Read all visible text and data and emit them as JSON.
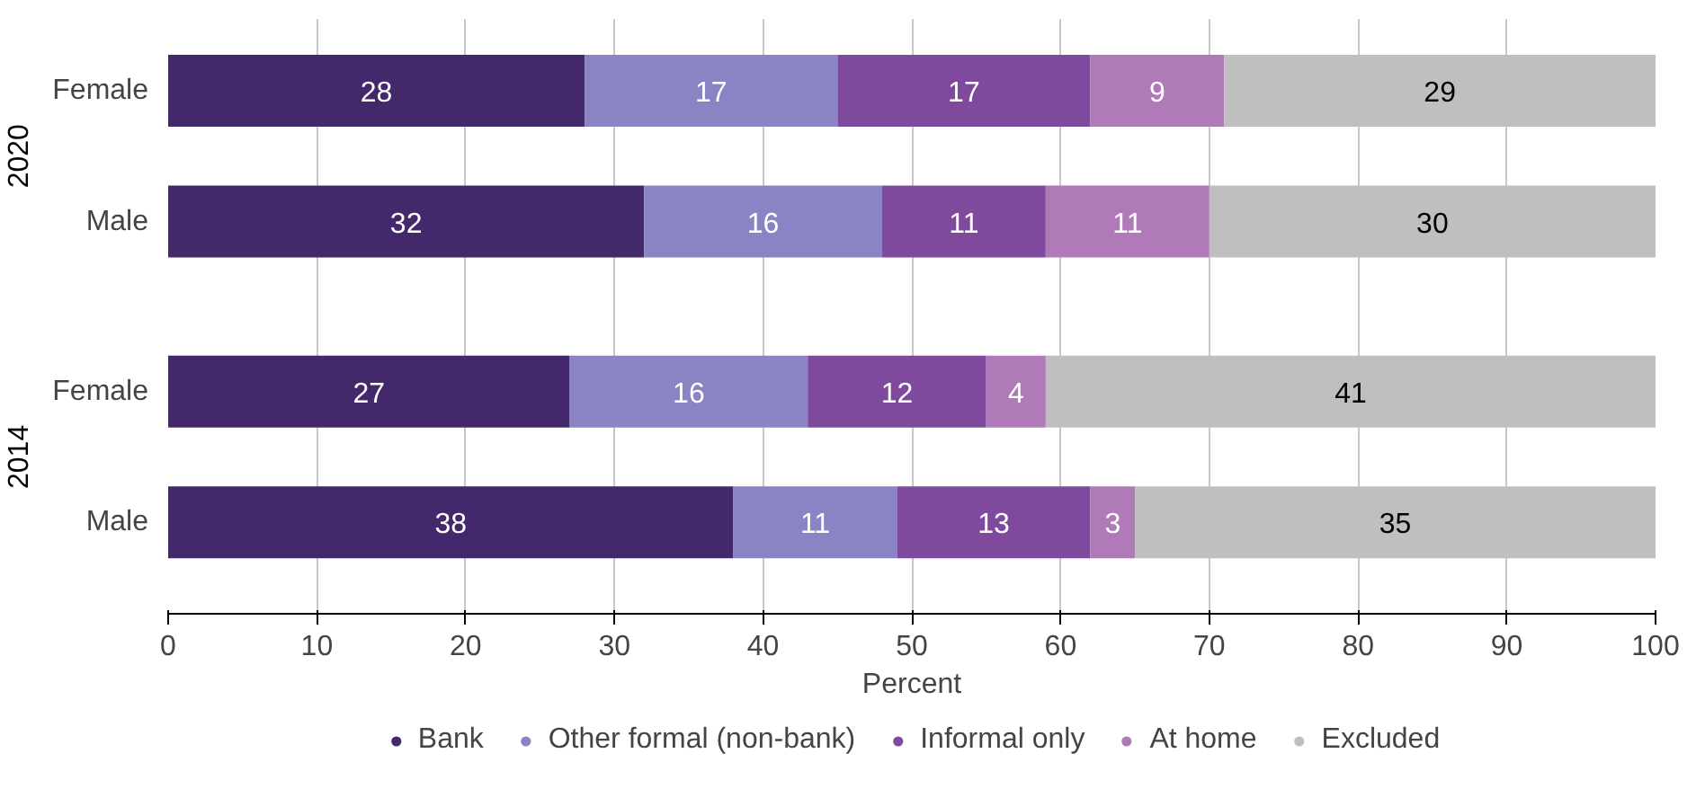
{
  "chart_data": {
    "type": "bar",
    "orientation": "horizontal",
    "stacked": true,
    "data_labels": true,
    "xlabel": "Percent",
    "categories": [
      "Female",
      "Male",
      "Female",
      "Male"
    ],
    "annotations": [
      "2020",
      "2014"
    ],
    "series": [
      {
        "name": "Bank",
        "color": "#43286b",
        "values": [
          28,
          32,
          27,
          38
        ]
      },
      {
        "name": "Other formal (non-bank)",
        "color": "#8a84c4",
        "values": [
          17,
          16,
          16,
          11
        ]
      },
      {
        "name": "Informal only",
        "color": "#7f4a9e",
        "values": [
          17,
          11,
          12,
          13
        ]
      },
      {
        "name": "At home",
        "color": "#b07ab8",
        "values": [
          9,
          11,
          4,
          3
        ]
      },
      {
        "name": "Excluded",
        "color": "#bfbfbf",
        "values": [
          29,
          30,
          41,
          35
        ]
      }
    ],
    "xlim": [
      0,
      100
    ],
    "xticks": [
      0,
      10,
      20,
      30,
      40,
      50,
      60,
      70,
      80,
      90,
      100
    ],
    "grid": "x",
    "legend": "bottom"
  }
}
